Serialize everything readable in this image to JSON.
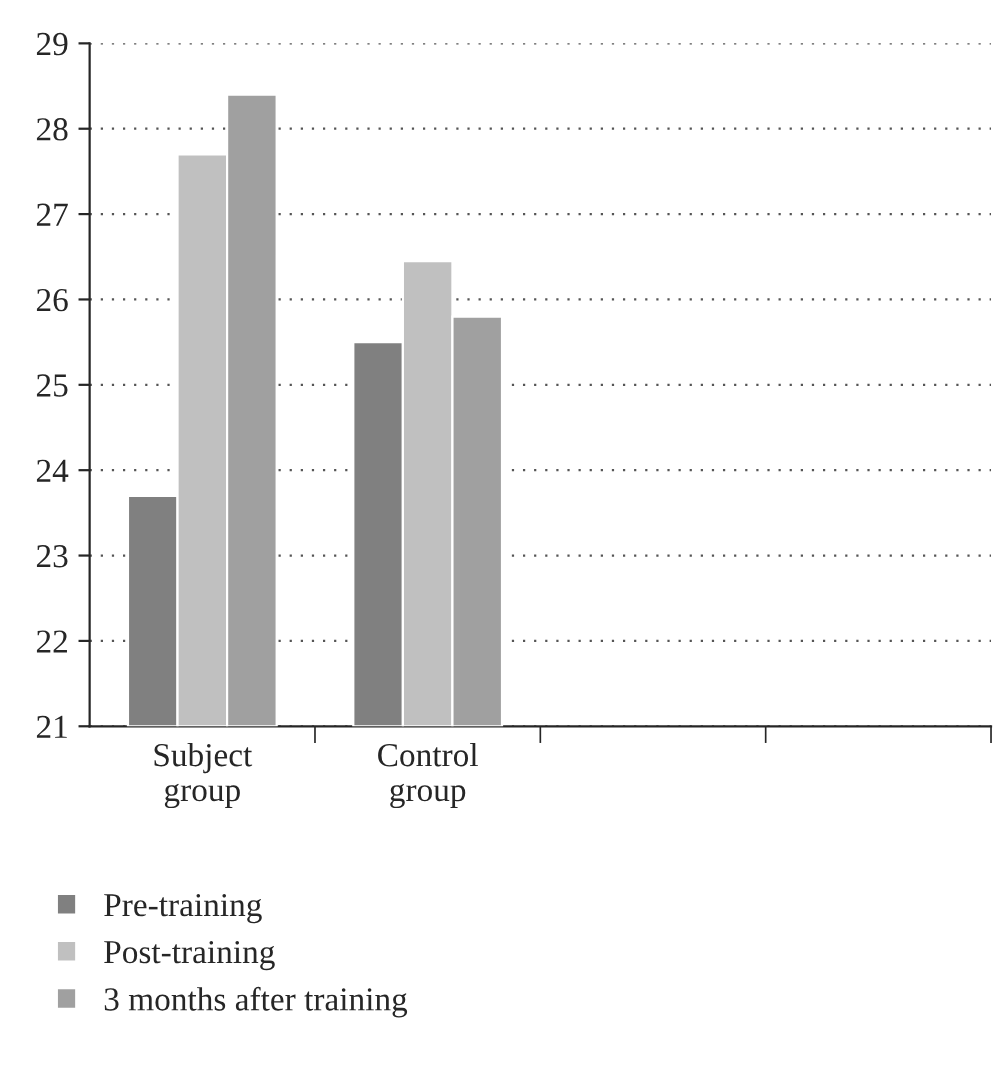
{
  "chart_data": {
    "type": "bar",
    "categories": [
      "Subject\ngroup",
      "Control\ngroup",
      null,
      null
    ],
    "series": [
      {
        "name": "Pre-training",
        "color": "#808080",
        "values": [
          23.7,
          25.5,
          null,
          null
        ]
      },
      {
        "name": "Post-training",
        "color": "#c0c0c0",
        "values": [
          27.7,
          26.45,
          null,
          null
        ]
      },
      {
        "name": "3 months after training",
        "color": "#a0a0a0",
        "values": [
          28.4,
          25.8,
          null,
          null
        ]
      }
    ],
    "ylim": [
      21,
      29
    ],
    "yticks": [
      21,
      22,
      23,
      24,
      25,
      26,
      27,
      28,
      29
    ],
    "grid": "y",
    "legend": "bottom"
  }
}
